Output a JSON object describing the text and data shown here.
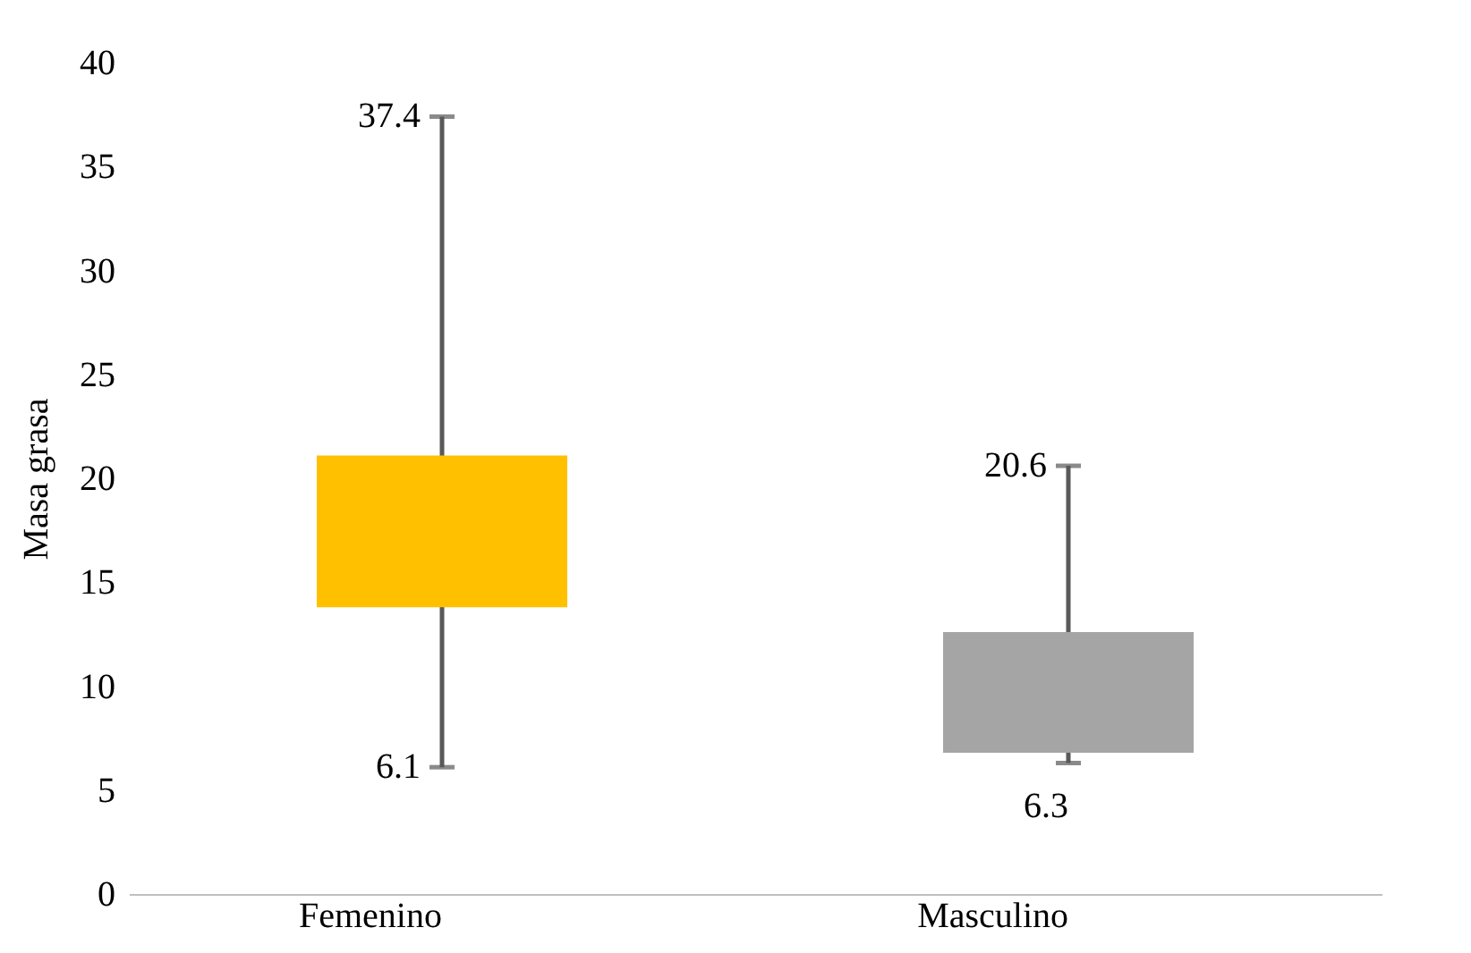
{
  "chart_data": {
    "type": "bar",
    "ylabel": "Masa grasa",
    "categories": [
      "Femenino",
      "Masculino"
    ],
    "base": [
      13.8,
      6.8
    ],
    "values": [
      7.3,
      5.8
    ],
    "colors": [
      "#ffc000",
      "#a5a5a5"
    ],
    "errors": [
      [
        6.1,
        37.4
      ],
      [
        6.3,
        20.6
      ]
    ],
    "annotations": [
      "37.4",
      "6.1",
      "20.6",
      "6.3"
    ],
    "ylim": [
      0,
      40
    ],
    "yticks": [
      0,
      5,
      10,
      15,
      20,
      25,
      30,
      35,
      40
    ],
    "grid": false
  }
}
